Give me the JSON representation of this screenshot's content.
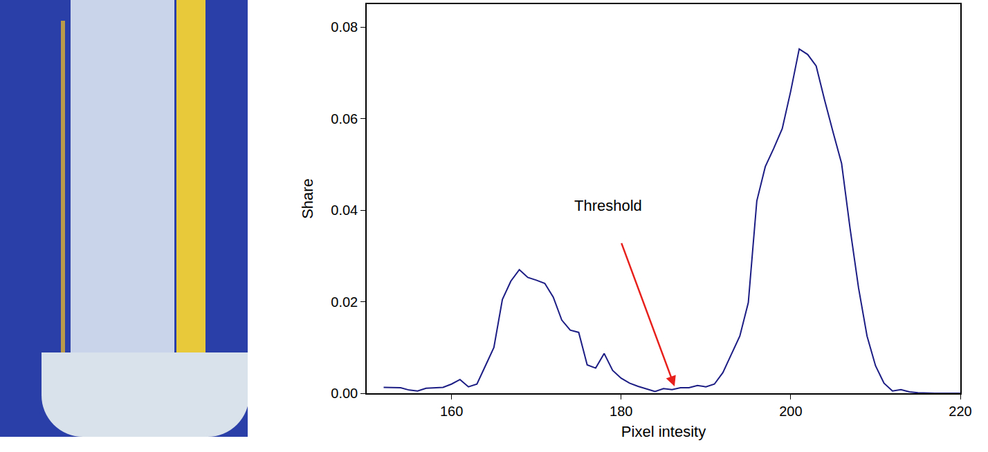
{
  "chart_data": {
    "type": "line",
    "x_label": "Pixel intesity",
    "y_label": "Share",
    "x": [
      152,
      153,
      154,
      155,
      156,
      157,
      158,
      159,
      160,
      161,
      162,
      163,
      164,
      165,
      166,
      167,
      168,
      169,
      170,
      171,
      172,
      173,
      174,
      175,
      176,
      177,
      178,
      179,
      180,
      181,
      182,
      183,
      184,
      185,
      186,
      187,
      188,
      189,
      190,
      191,
      192,
      193,
      194,
      195,
      196,
      197,
      198,
      199,
      200,
      201,
      202,
      203,
      204,
      205,
      206,
      207,
      208,
      209,
      210,
      211,
      212,
      213,
      214,
      215,
      216,
      217,
      218,
      219,
      220
    ],
    "values": [
      0.0013,
      0.0012,
      0.0012,
      0.0007,
      0.0005,
      0.0011,
      0.0012,
      0.0013,
      0.002,
      0.003,
      0.0014,
      0.002,
      0.006,
      0.01,
      0.0205,
      0.0245,
      0.027,
      0.0253,
      0.0247,
      0.024,
      0.021,
      0.016,
      0.0138,
      0.0133,
      0.0062,
      0.0055,
      0.0087,
      0.005,
      0.0033,
      0.0022,
      0.0015,
      0.001,
      0.0004,
      0.001,
      0.0008,
      0.0012,
      0.0012,
      0.0017,
      0.0014,
      0.002,
      0.0045,
      0.0085,
      0.0125,
      0.0198,
      0.042,
      0.0495,
      0.0535,
      0.0578,
      0.066,
      0.0752,
      0.074,
      0.0715,
      0.064,
      0.057,
      0.0502,
      0.036,
      0.023,
      0.0125,
      0.006,
      0.0022,
      0.0005,
      0.0008,
      0.0003,
      0.0001,
      0,
      0,
      0,
      0,
      0
    ],
    "color": "#1c1c85",
    "xlim": [
      150,
      220
    ],
    "xticks": [
      160,
      180,
      200,
      220
    ],
    "ylim": [
      0,
      0.085
    ],
    "yticks": [
      {
        "value": 0,
        "label": "0.00"
      },
      {
        "value": 0.02,
        "label": "0.02"
      },
      {
        "value": 0.04,
        "label": "0.04"
      },
      {
        "value": 0.06,
        "label": "0.06"
      },
      {
        "value": 0.08,
        "label": "0.08"
      }
    ],
    "grid": false,
    "annotations": [
      {
        "text": "Threshold",
        "text_x": 178.5,
        "text_y": 0.041,
        "arrow_from_x": 180,
        "arrow_from_y": 0.033,
        "x": 186.3,
        "y": 0.0015,
        "color": "#e8201c"
      }
    ]
  }
}
